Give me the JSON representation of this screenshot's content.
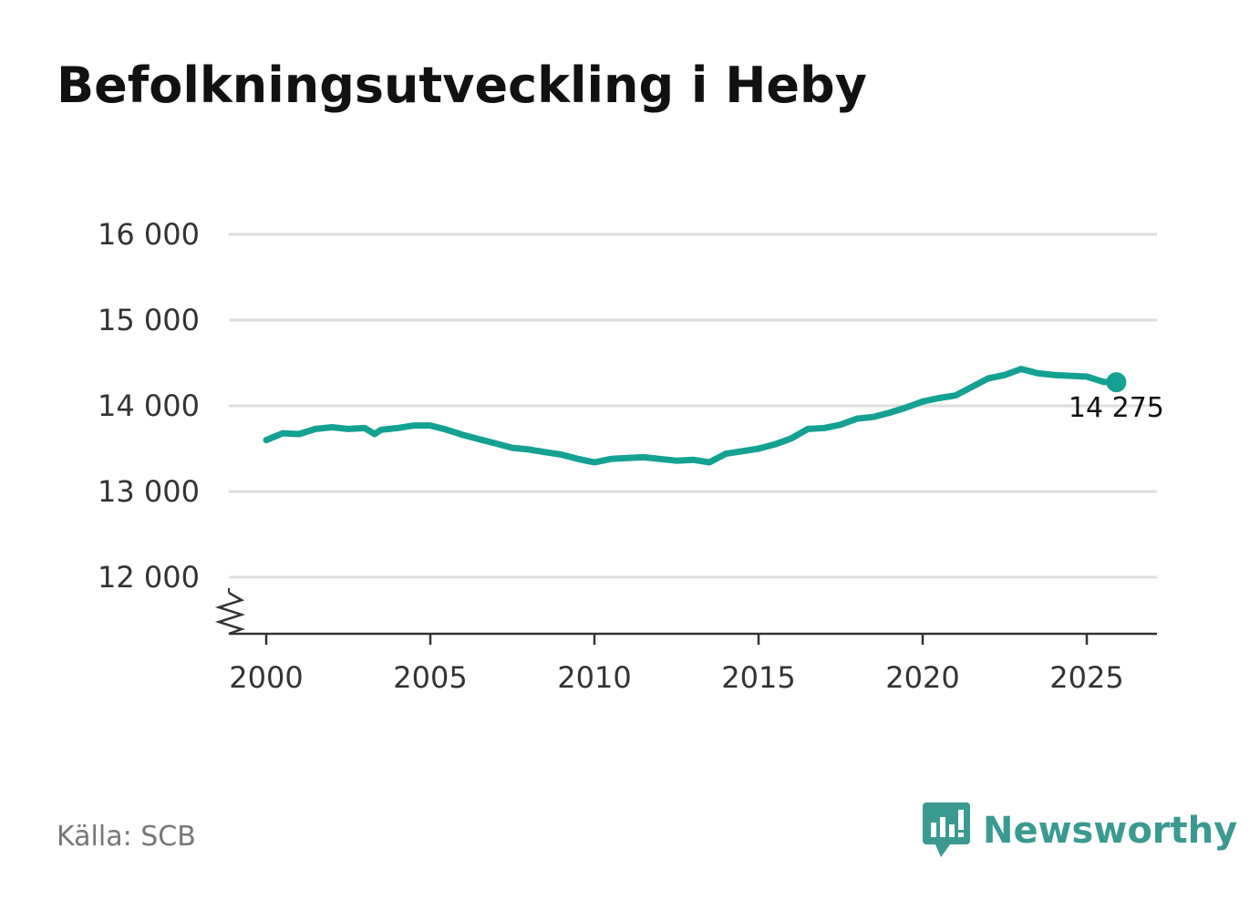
{
  "title": "Befolkningsutveckling i Heby",
  "source": "Källa: SCB",
  "brand": {
    "name": "Newsworthy",
    "color": "#3a9a91",
    "icon": "newsworthy-logo-icon"
  },
  "colors": {
    "line": "#13a193",
    "grid": "#dddddd",
    "axis": "#333333"
  },
  "chart_data": {
    "type": "line",
    "title": "Befolkningsutveckling i Heby",
    "xlabel": "",
    "ylabel": "",
    "xlim": [
      1999,
      2027.2
    ],
    "ylim": [
      11400,
      16300
    ],
    "y_axis_break": true,
    "grid": "horizontal",
    "x_ticks": [
      2000,
      2005,
      2010,
      2015,
      2020,
      2025
    ],
    "x_tick_labels": [
      "2000",
      "2005",
      "2010",
      "2015",
      "2020",
      "2025"
    ],
    "y_ticks": [
      12000,
      13000,
      14000,
      15000,
      16000
    ],
    "y_tick_labels": [
      "12 000",
      "13 000",
      "14 000",
      "15 000",
      "16 000"
    ],
    "last_value_label": "14 275",
    "series": [
      {
        "x": [
          2000.0,
          2000.5,
          2001.0,
          2001.5,
          2002.0,
          2002.5,
          2003.0,
          2003.3,
          2003.5,
          2004.0,
          2004.5,
          2005.0,
          2005.5,
          2006.0,
          2006.5,
          2007.0,
          2007.5,
          2008.0,
          2008.5,
          2009.0,
          2009.5,
          2010.0,
          2010.5,
          2011.0,
          2011.5,
          2012.0,
          2012.5,
          2013.0,
          2013.5,
          2014.0,
          2014.5,
          2015.0,
          2015.5,
          2016.0,
          2016.5,
          2017.0,
          2017.5,
          2018.0,
          2018.5,
          2019.0,
          2019.5,
          2020.0,
          2020.5,
          2021.0,
          2021.5,
          2022.0,
          2022.5,
          2023.0,
          2023.5,
          2024.0,
          2024.5,
          2025.0,
          2025.5,
          2025.9
        ],
        "values": [
          13600,
          13680,
          13670,
          13730,
          13750,
          13730,
          13740,
          13670,
          13720,
          13740,
          13770,
          13770,
          13720,
          13660,
          13610,
          13560,
          13510,
          13490,
          13460,
          13430,
          13380,
          13340,
          13380,
          13390,
          13400,
          13380,
          13360,
          13370,
          13340,
          13440,
          13470,
          13500,
          13550,
          13620,
          13730,
          13740,
          13780,
          13850,
          13870,
          13920,
          13980,
          14050,
          14090,
          14120,
          14220,
          14320,
          14360,
          14430,
          14380,
          14360,
          14350,
          14340,
          14280,
          14275
        ]
      }
    ]
  }
}
